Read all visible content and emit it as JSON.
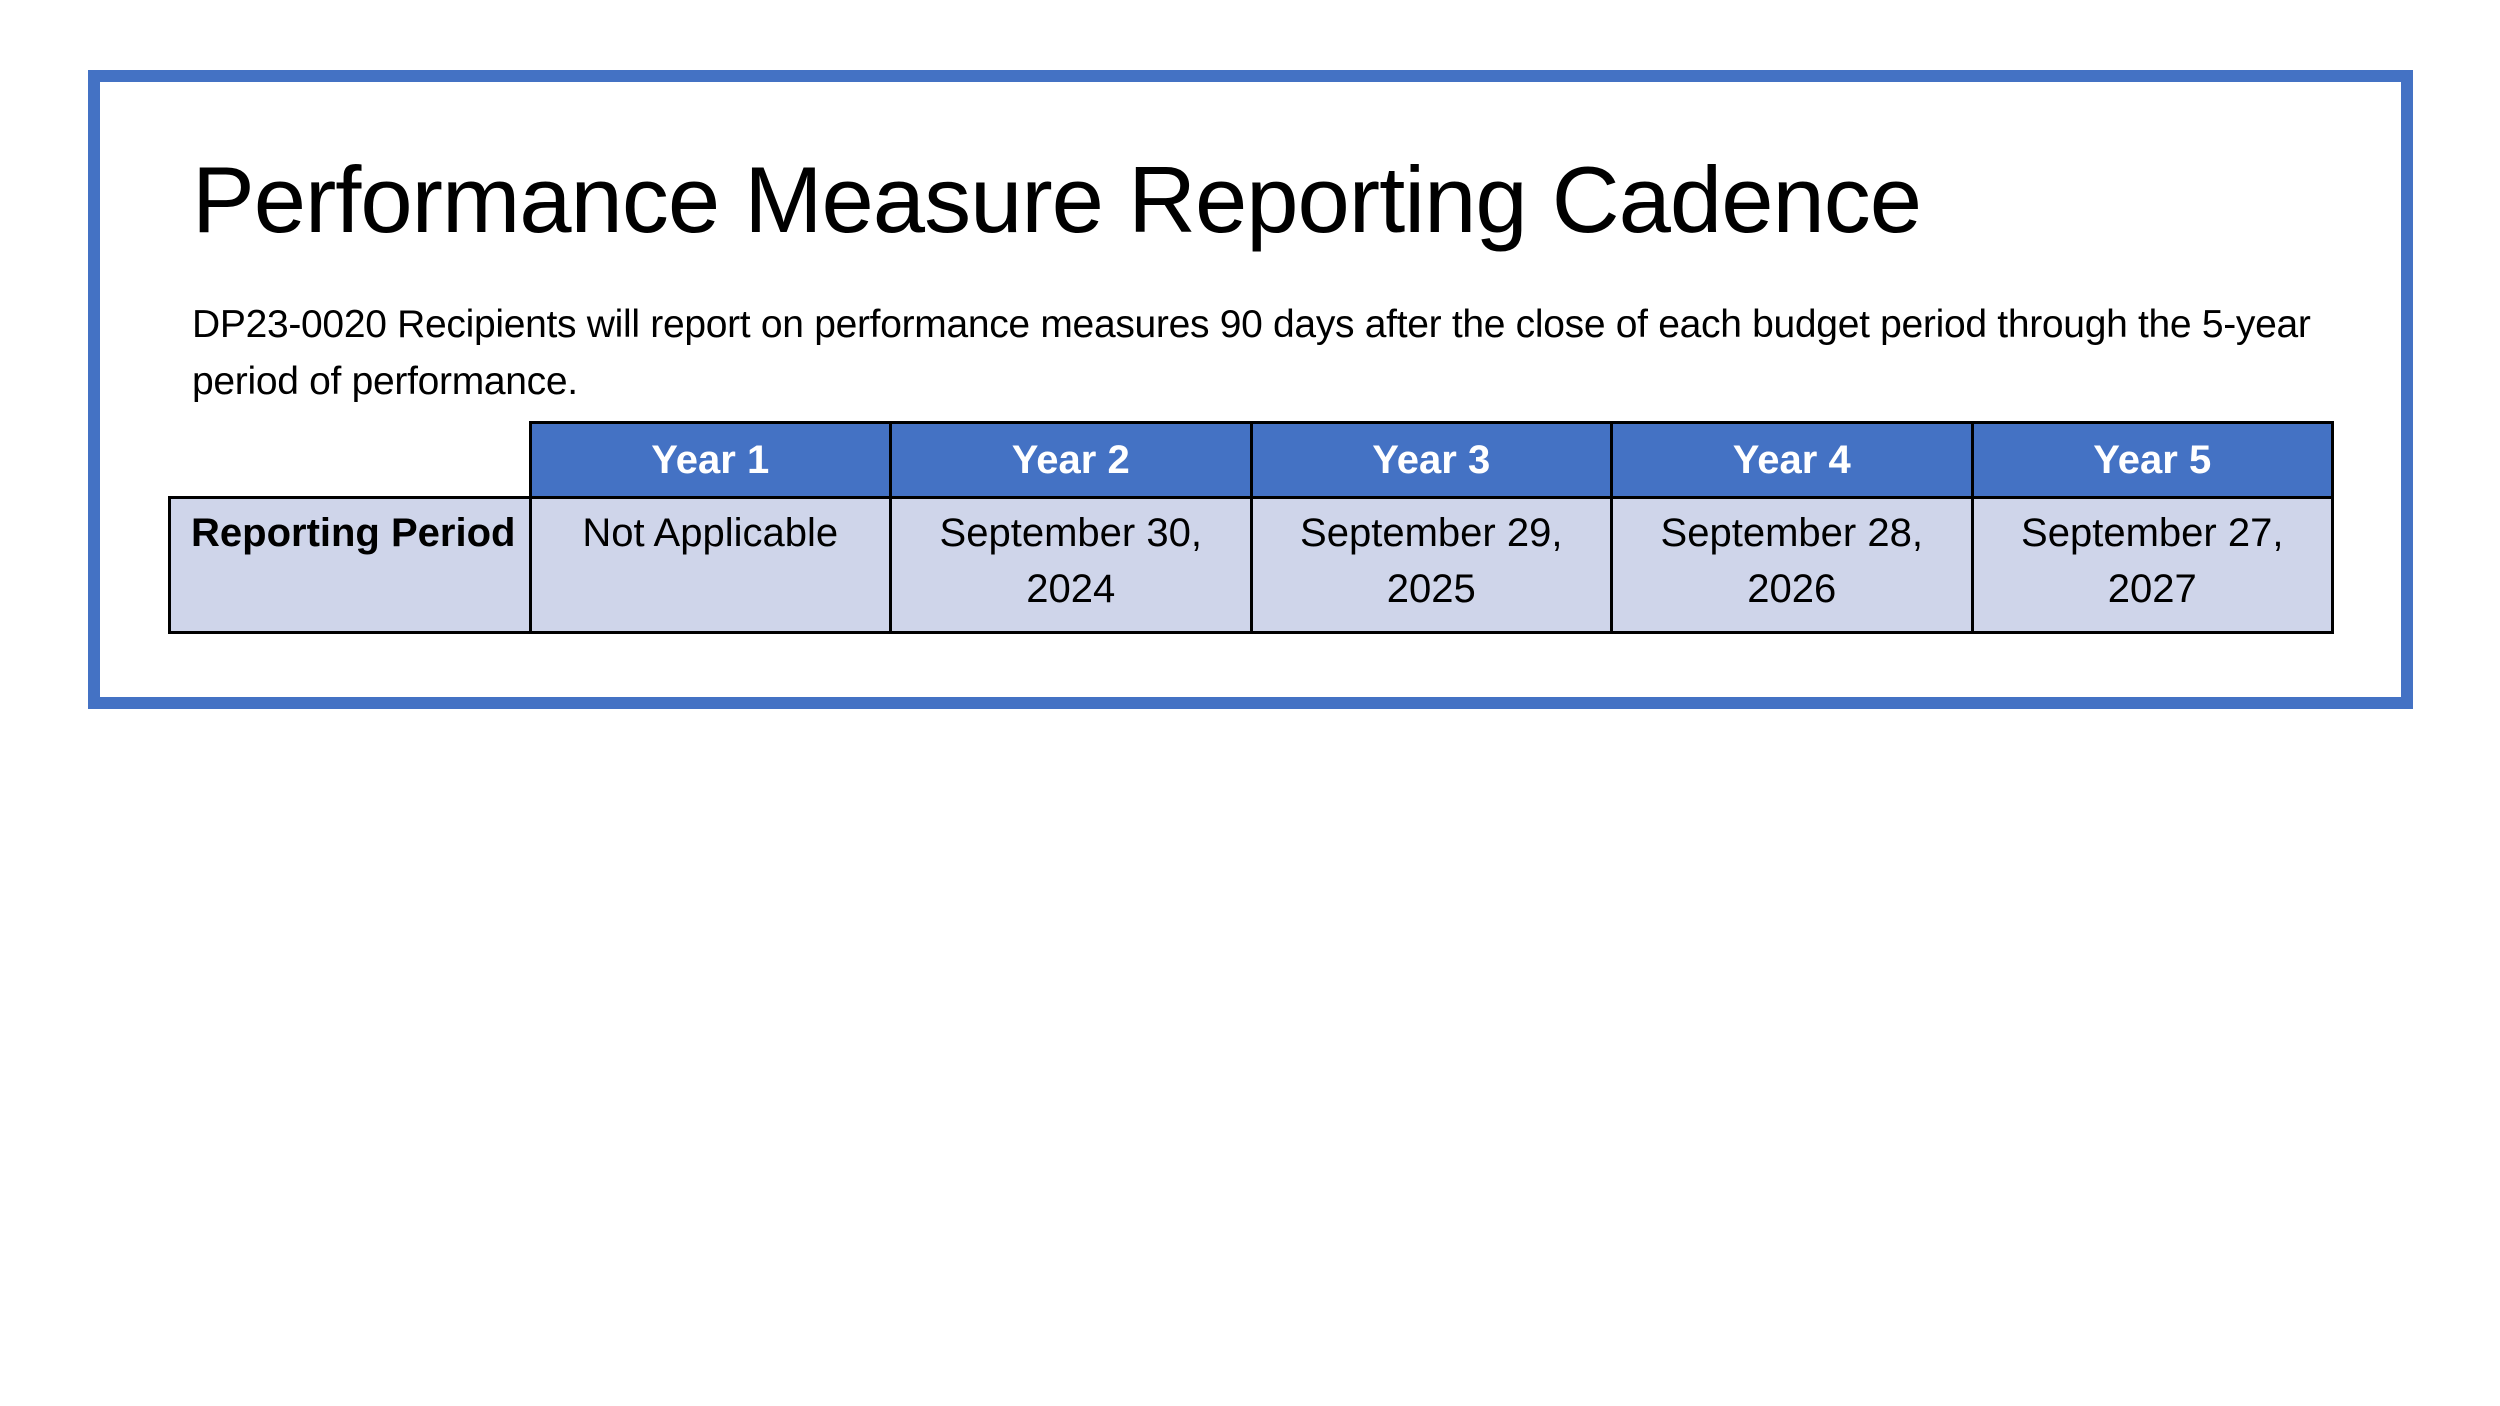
{
  "title": "Performance Measure Reporting Cadence",
  "description": "DP23-0020 Recipients will report on performance measures 90 days after the close of each budget period through the 5-year period of performance.",
  "colors": {
    "border": "#4472C4",
    "header_bg": "#4472C4",
    "row_bg": "#CFD5EA"
  },
  "table": {
    "headers": [
      "Year 1",
      "Year 2",
      "Year 3",
      "Year 4",
      "Year 5"
    ],
    "row_label": "Reporting Period",
    "cells": [
      "Not Applicable",
      "September 30, 2024",
      "September 29, 2025",
      "September 28, 2026",
      "September 27, 2027"
    ]
  }
}
